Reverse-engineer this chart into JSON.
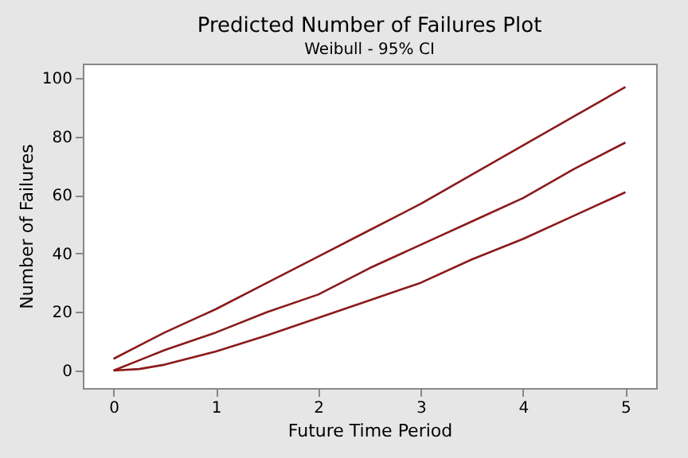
{
  "chart_data": {
    "type": "line",
    "title": "Predicted Number of Failures Plot",
    "subtitle": "Weibull - 95% CI",
    "xlabel": "Future Time Period",
    "ylabel": "Number of Failures",
    "x": [
      0,
      0.25,
      0.5,
      1,
      1.5,
      2,
      2.5,
      3,
      3.5,
      4,
      4.5,
      5
    ],
    "series": [
      {
        "color": "#8b1a1a",
        "values": [
          4,
          8.5,
          13,
          21,
          30,
          39,
          48,
          57,
          67,
          77,
          87,
          97
        ]
      },
      {
        "color": "#8b1a1a",
        "values": [
          0,
          3.5,
          7,
          13,
          20,
          26,
          35,
          43,
          51,
          59,
          69,
          78
        ]
      },
      {
        "color": "#8b1a1a",
        "values": [
          0,
          0.5,
          2,
          6.5,
          12,
          18,
          24,
          30,
          38,
          45,
          53,
          61
        ]
      }
    ],
    "xlim": [
      -0.3,
      5.3
    ],
    "xticks": [
      0,
      1,
      2,
      3,
      4,
      5
    ],
    "ylim": [
      -6,
      105
    ],
    "yticks": [
      0,
      20,
      40,
      60,
      80,
      100
    ],
    "grid": false,
    "marker": "none",
    "line_style": "solid"
  }
}
